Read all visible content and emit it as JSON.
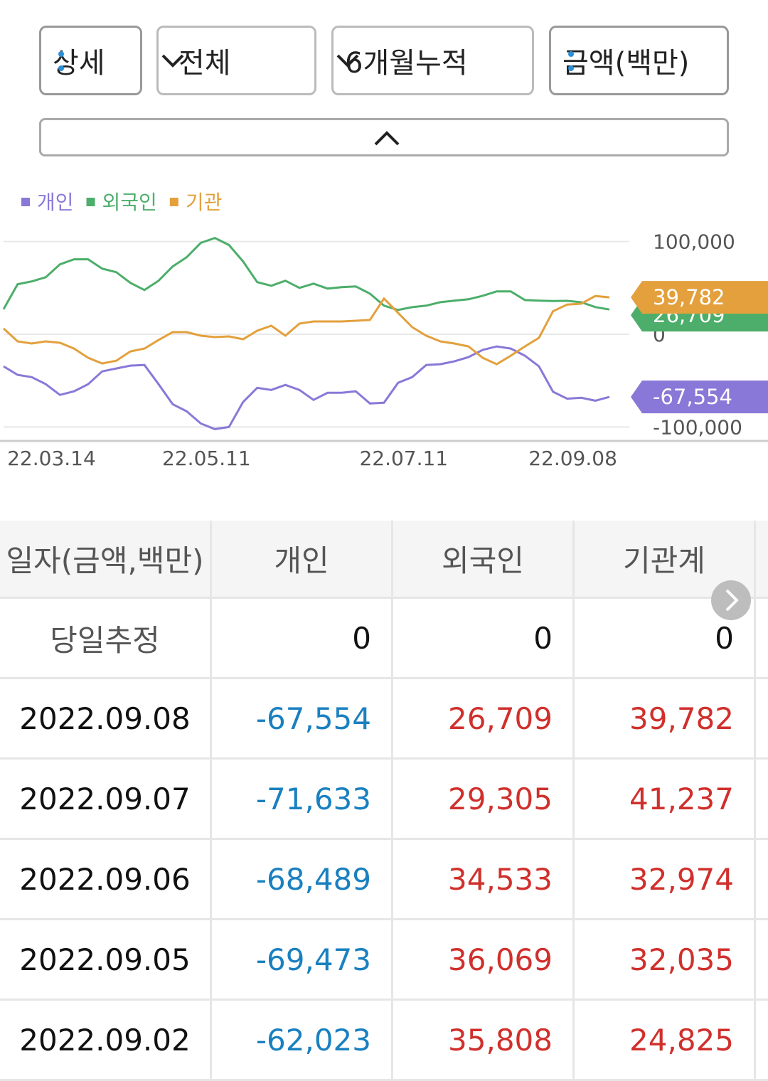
{
  "controls": [
    {
      "label": "상세",
      "icon": "dots"
    },
    {
      "label": "전체",
      "icon": "chevron"
    },
    {
      "label": "6개월누적",
      "icon": "chevron"
    },
    {
      "label": "금액(백만)",
      "icon": "dots"
    }
  ],
  "chart_data": {
    "type": "line",
    "categories": [
      null,
      null,
      null,
      "22.03.14",
      null,
      null,
      null,
      null,
      null,
      null,
      null,
      null,
      null,
      null,
      "22.05.11",
      null,
      null,
      null,
      null,
      null,
      null,
      null,
      null,
      null,
      null,
      null,
      null,
      null,
      "22.07.11",
      null,
      null,
      null,
      null,
      null,
      null,
      null,
      null,
      null,
      null,
      null,
      "22.09.08",
      null,
      null,
      null
    ],
    "series": [
      {
        "name": "개인",
        "color": "#8a78d8",
        "last_label": "-67,554",
        "values": [
          -34600,
          -43800,
          -46200,
          -53800,
          -65400,
          -61500,
          -53800,
          -40000,
          -36900,
          -33800,
          -33100,
          -53800,
          -75400,
          -83100,
          -96200,
          -102300,
          -100000,
          -73100,
          -57700,
          -60000,
          -54600,
          -60000,
          -70800,
          -63100,
          -63100,
          -61500,
          -74600,
          -73800,
          -52300,
          -46200,
          -33100,
          -32300,
          -29200,
          -24600,
          -16900,
          -13100,
          -15400,
          -23100,
          -34600,
          -62023,
          -69473,
          -68489,
          -71633,
          -67554
        ]
      },
      {
        "name": "외국인",
        "color": "#4cae6a",
        "last_label": "26,709",
        "values": [
          27000,
          54000,
          57000,
          61500,
          75400,
          80800,
          80800,
          70800,
          66900,
          55400,
          47700,
          57700,
          73100,
          83100,
          98500,
          103800,
          96200,
          78500,
          56200,
          52300,
          57700,
          50000,
          54600,
          49200,
          50800,
          51500,
          43800,
          30800,
          26200,
          29200,
          30800,
          34600,
          36200,
          37700,
          41500,
          46200,
          46200,
          36900,
          36200,
          35808,
          36069,
          34533,
          29305,
          26709
        ]
      },
      {
        "name": "기관",
        "color": "#e3a03c",
        "last_label": "39,782",
        "values": [
          6200,
          -7700,
          -10000,
          -7700,
          -9200,
          -15400,
          -25400,
          -31500,
          -28500,
          -18500,
          -15400,
          -6200,
          2300,
          2300,
          -1500,
          -3100,
          -2300,
          -5400,
          3800,
          9200,
          -1500,
          11500,
          13800,
          13800,
          13800,
          14600,
          15400,
          38500,
          23100,
          7700,
          -1500,
          -7700,
          -10000,
          -13100,
          -25400,
          -32300,
          -23100,
          -13100,
          -3800,
          24825,
          32035,
          32974,
          41237,
          39782
        ]
      }
    ],
    "ylim": [
      -115000,
      115000
    ],
    "yticks": [
      {
        "value": 100000,
        "label": "100,000"
      },
      0,
      {
        "value": -100000,
        "label": "-100,000"
      }
    ],
    "grid": true
  },
  "table": {
    "headers": [
      "일자(금액,백만)",
      "개인",
      "외국인",
      "기관계"
    ],
    "rows": [
      [
        "당일추정",
        "0",
        "0",
        "0"
      ],
      [
        "2022.09.08",
        "-67,554",
        "26,709",
        "39,782"
      ],
      [
        "2022.09.07",
        "-71,633",
        "29,305",
        "41,237"
      ],
      [
        "2022.09.06",
        "-68,489",
        "34,533",
        "32,974"
      ],
      [
        "2022.09.05",
        "-69,473",
        "36,069",
        "32,035"
      ],
      [
        "2022.09.02",
        "-62,023",
        "35,808",
        "24,825"
      ]
    ]
  }
}
